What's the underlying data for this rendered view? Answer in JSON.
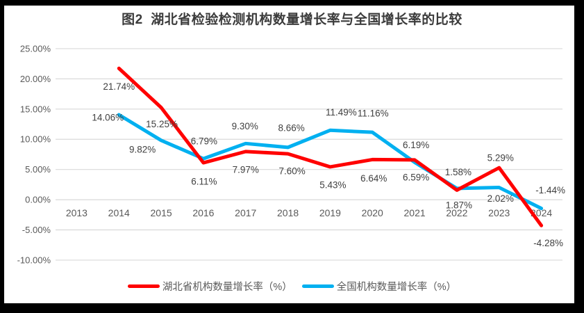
{
  "chart_data": {
    "type": "line",
    "title": "图2  湖北省检验检测机构数量增长率与全国增长率的比较",
    "categories": [
      "2013",
      "2014",
      "2015",
      "2016",
      "2017",
      "2018",
      "2019",
      "2020",
      "2021",
      "2022",
      "2023",
      "2024"
    ],
    "series": [
      {
        "name": "湖北省机构数量增长率（%）",
        "color": "#FF0000",
        "values": [
          null,
          21.74,
          15.25,
          6.11,
          7.97,
          7.6,
          5.43,
          6.64,
          6.59,
          1.58,
          5.29,
          -4.28
        ],
        "labels": [
          "",
          "21.74%",
          "15.25%",
          "6.11%",
          "7.97%",
          "7.60%",
          "5.43%",
          "6.64%",
          "6.59%",
          "1.58%",
          "5.29%",
          "-4.28%"
        ]
      },
      {
        "name": "全国机构数量增长率（%）",
        "color": "#00B0F0",
        "values": [
          null,
          14.06,
          9.82,
          6.79,
          9.3,
          8.66,
          11.49,
          11.16,
          6.19,
          1.87,
          2.02,
          -1.44
        ],
        "labels": [
          "",
          "14.06%",
          "9.82%",
          "6.79%",
          "9.30%",
          "8.66%",
          "11.49%",
          "11.16%",
          "6.19%",
          "1.87%",
          "2.02%",
          "-1.44%"
        ]
      }
    ],
    "y_axis": {
      "min": -10,
      "max": 25,
      "step": 5,
      "tick_labels": [
        "25.00%",
        "20.00%",
        "15.00%",
        "10.00%",
        "5.00%",
        "0.00%",
        "-5.00%",
        "-10.00%"
      ]
    },
    "grid": true,
    "legend_position": "bottom",
    "data_labels_shown": true
  }
}
